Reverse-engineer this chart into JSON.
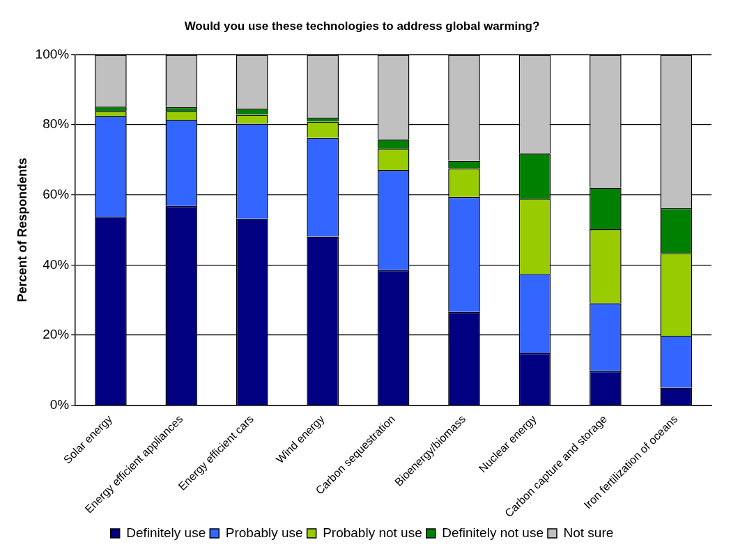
{
  "chart_data": {
    "type": "bar",
    "title": "Would you use these technologies to address global warming?",
    "ylabel": "Percent of Respondents",
    "categories": [
      "Solar energy",
      "Energy efficient appliances",
      "Energy efficient cars",
      "Wind energy",
      "Carbon sequestration",
      "Bioenergy/biomass",
      "Nuclear energy",
      "Carbon capture and storage",
      "Iron fertilization of oceans"
    ],
    "series": [
      {
        "name": "Definitely use",
        "color": "#000080",
        "values": [
          53.7,
          56.8,
          53.2,
          48.1,
          38.5,
          26.6,
          14.8,
          9.7,
          5.0
        ]
      },
      {
        "name": "Probably use",
        "color": "#3366ff",
        "values": [
          28.8,
          24.6,
          27.1,
          28.2,
          28.6,
          32.8,
          22.6,
          19.4,
          14.8
        ]
      },
      {
        "name": "Probably not use",
        "color": "#99cc00",
        "values": [
          1.4,
          2.5,
          2.6,
          4.6,
          6.1,
          8.2,
          21.5,
          21.1,
          23.6
        ]
      },
      {
        "name": "Definitely not use",
        "color": "#008000",
        "values": [
          1.3,
          1.1,
          1.7,
          1.1,
          2.6,
          2.1,
          12.9,
          11.8,
          12.8
        ]
      },
      {
        "name": "Not sure",
        "color": "#c0c0c0",
        "values": [
          14.8,
          15.0,
          15.4,
          18.0,
          24.2,
          30.3,
          28.2,
          38.0,
          43.8
        ]
      }
    ],
    "stacked": true,
    "ylim": [
      0,
      100
    ],
    "yticks": [
      {
        "value": 0,
        "label": "0%"
      },
      {
        "value": 20,
        "label": "20%"
      },
      {
        "value": 40,
        "label": "40%"
      },
      {
        "value": 60,
        "label": "60%"
      },
      {
        "value": 80,
        "label": "80%"
      },
      {
        "value": 100,
        "label": "100%"
      }
    ],
    "grid": "y",
    "legend": "bottom"
  }
}
